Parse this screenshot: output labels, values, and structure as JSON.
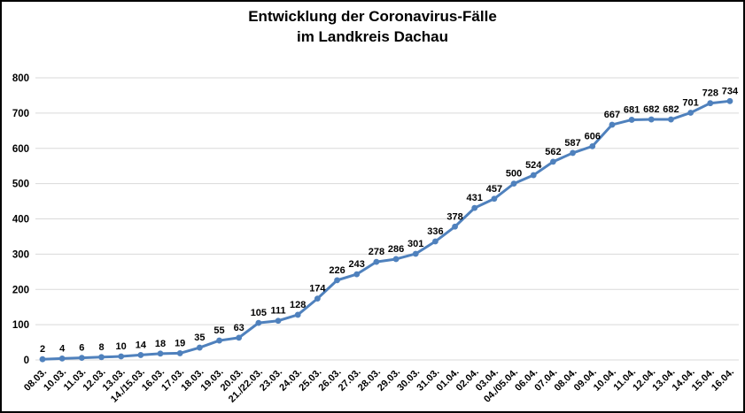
{
  "title": {
    "line1": "Entwicklung der Coronavirus-Fälle",
    "line2": "im Landkreis Dachau"
  },
  "colors": {
    "line": "#4F81BD",
    "marker": "#4F81BD",
    "grid": "#D9D9D9",
    "text": "#000000",
    "frame_border": "#000000",
    "background": "#FFFFFF"
  },
  "chart_data": {
    "type": "line",
    "title": "Entwicklung der Coronavirus-Fälle im Landkreis Dachau",
    "xlabel": "",
    "ylabel": "",
    "ylim": [
      0,
      800
    ],
    "yticks": [
      0,
      100,
      200,
      300,
      400,
      500,
      600,
      700,
      800
    ],
    "grid": "horizontal",
    "legend": "none",
    "data_labels": true,
    "marker": "circle",
    "categories": [
      "08.03.",
      "10.03.",
      "11.03.",
      "12.03.",
      "13.03.",
      "14./15.03.",
      "16.03.",
      "17.03.",
      "18.03.",
      "19.03.",
      "20.03.",
      "21./22.03.",
      "23.03.",
      "24.03.",
      "25.03.",
      "26.03.",
      "27.03.",
      "28.03.",
      "29.03.",
      "30.03.",
      "31.03.",
      "01.04.",
      "02.04.",
      "03.04.",
      "04./05.04.",
      "06.04.",
      "07.04.",
      "08.04.",
      "09.04.",
      "10.04.",
      "11.04.",
      "12.04.",
      "13.04.",
      "14.04.",
      "15.04.",
      "16.04."
    ],
    "values": [
      2,
      4,
      6,
      8,
      10,
      14,
      18,
      19,
      35,
      55,
      63,
      105,
      111,
      128,
      174,
      226,
      243,
      278,
      286,
      301,
      336,
      378,
      431,
      457,
      500,
      524,
      562,
      587,
      606,
      667,
      681,
      682,
      682,
      701,
      728,
      734
    ]
  }
}
